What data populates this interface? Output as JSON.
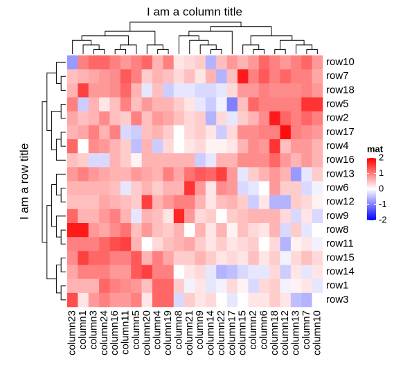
{
  "chart_data": {
    "type": "heatmap",
    "title": "I am a column title",
    "ylabel": "I am a row title",
    "legend_title": "mat",
    "x": [
      "column23",
      "column1",
      "column3",
      "column24",
      "column16",
      "column11",
      "column5",
      "column20",
      "column4",
      "column19",
      "column8",
      "column21",
      "column9",
      "column14",
      "column22",
      "column17",
      "column15",
      "column2",
      "column6",
      "column18",
      "column12",
      "column13",
      "column7",
      "column10"
    ],
    "y": [
      "row10",
      "row7",
      "row18",
      "row5",
      "row2",
      "row17",
      "row4",
      "row16",
      "row13",
      "row6",
      "row12",
      "row9",
      "row8",
      "row11",
      "row15",
      "row14",
      "row1",
      "row3"
    ],
    "values": [
      [
        -0.8,
        1.0,
        1.2,
        1.2,
        1.0,
        0.8,
        1.0,
        1.2,
        0.6,
        1.0,
        0.2,
        0.3,
        0.4,
        -0.6,
        0.5,
        0.8,
        0.6,
        0.8,
        1.2,
        1.0,
        0.8,
        1.0,
        1.2,
        0.8
      ],
      [
        0.5,
        0.6,
        0.7,
        0.8,
        0.9,
        1.3,
        1.0,
        0.4,
        0.6,
        0.5,
        0.3,
        0.5,
        0.2,
        0.6,
        -0.6,
        0.5,
        1.8,
        1.0,
        1.3,
        1.0,
        1.2,
        1.0,
        1.0,
        0.7
      ],
      [
        0.6,
        1.5,
        0.8,
        0.8,
        0.9,
        1.2,
        0.6,
        -0.2,
        0.5,
        -0.4,
        -0.2,
        -0.2,
        -0.3,
        -0.3,
        -0.2,
        0.3,
        0.8,
        0.8,
        1.0,
        0.9,
        0.9,
        0.9,
        1.0,
        0.8
      ],
      [
        1.0,
        -0.4,
        0.6,
        0.2,
        0.5,
        1.0,
        0.5,
        0.8,
        0.6,
        0.6,
        0.4,
        0.2,
        -0.2,
        -0.4,
        -0.1,
        -1.0,
        0.5,
        1.2,
        1.0,
        1.0,
        1.0,
        1.0,
        1.6,
        1.6
      ],
      [
        0.7,
        0.5,
        0.6,
        0.9,
        0.5,
        0.4,
        1.0,
        0.5,
        0.8,
        0.7,
        0.5,
        0.3,
        0.4,
        -0.6,
        0.3,
        -0.2,
        0.4,
        0.6,
        0.9,
        1.8,
        1.2,
        1.0,
        1.2,
        1.0
      ],
      [
        0.6,
        0.7,
        1.0,
        0.6,
        1.0,
        -0.3,
        -0.4,
        0.5,
        0.6,
        0.4,
        0.0,
        0.3,
        0.4,
        0.2,
        -0.4,
        0.3,
        0.9,
        0.9,
        1.0,
        1.0,
        1.9,
        1.0,
        0.9,
        0.8
      ],
      [
        1.2,
        0.0,
        0.9,
        0.8,
        0.6,
        0.4,
        -0.5,
        0.6,
        -0.4,
        0.3,
        0.0,
        0.2,
        0.3,
        0.1,
        0.1,
        0.2,
        0.6,
        0.9,
        0.8,
        1.6,
        0.5,
        0.8,
        0.8,
        0.6
      ],
      [
        0.5,
        0.4,
        -0.3,
        -0.3,
        0.6,
        0.4,
        0.1,
        0.6,
        0.6,
        0.6,
        0.6,
        0.6,
        -0.4,
        -0.2,
        0.6,
        0.6,
        0.9,
        0.9,
        0.9,
        1.2,
        0.8,
        0.6,
        0.8,
        0.6
      ],
      [
        0.8,
        1.0,
        0.8,
        0.7,
        0.6,
        0.6,
        0.8,
        0.7,
        0.6,
        1.0,
        0.7,
        1.1,
        1.3,
        1.2,
        1.5,
        0.8,
        -0.2,
        0.4,
        0.6,
        0.8,
        0.6,
        -0.8,
        -0.2,
        0.4
      ],
      [
        0.6,
        0.6,
        0.6,
        0.6,
        0.5,
        -0.2,
        0.4,
        0.6,
        0.4,
        0.6,
        0.6,
        1.6,
        0.8,
        0.2,
        0.9,
        0.8,
        -0.3,
        -0.2,
        0.0,
        0.8,
        0.4,
        0.4,
        -0.3,
        -0.1
      ],
      [
        0.5,
        0.5,
        0.5,
        0.7,
        0.6,
        0.5,
        0.4,
        1.5,
        0.6,
        0.8,
        1.0,
        1.0,
        0.6,
        0.2,
        0.5,
        0.6,
        0.4,
        -0.4,
        0.2,
        -0.6,
        -0.6,
        0.4,
        0.3,
        0.1
      ],
      [
        1.2,
        0.6,
        0.6,
        0.8,
        1.0,
        0.6,
        -0.2,
        0.6,
        0.5,
        0.2,
        1.7,
        0.8,
        0.3,
        0.4,
        0.0,
        0.4,
        0.5,
        0.6,
        0.6,
        0.6,
        0.3,
        -0.3,
        0.2,
        -0.3
      ],
      [
        1.8,
        1.8,
        0.8,
        0.7,
        0.9,
        1.1,
        0.5,
        0.8,
        0.5,
        0.4,
        0.6,
        0.0,
        0.6,
        0.2,
        0.6,
        0.1,
        0.5,
        0.3,
        0.2,
        0.6,
        -0.3,
        0.4,
        -0.2,
        0.0
      ],
      [
        1.0,
        1.0,
        1.0,
        1.2,
        1.4,
        1.5,
        0.6,
        0.0,
        0.3,
        0.5,
        0.6,
        0.7,
        0.4,
        0.2,
        0.4,
        0.2,
        0.3,
        0.4,
        0.0,
        0.3,
        -0.6,
        0.1,
        0.2,
        -0.1
      ],
      [
        0.9,
        1.5,
        1.2,
        1.2,
        1.0,
        1.0,
        1.3,
        0.6,
        1.0,
        0.7,
        0.4,
        0.4,
        0.6,
        0.4,
        0.2,
        0.3,
        0.2,
        0.5,
        0.2,
        0.4,
        -0.1,
        0.3,
        0.5,
        0.3
      ],
      [
        0.7,
        1.0,
        1.0,
        1.0,
        0.8,
        0.8,
        1.3,
        1.5,
        1.0,
        1.0,
        0.0,
        0.2,
        0.3,
        -0.2,
        -0.6,
        -0.5,
        -0.3,
        -0.2,
        -0.2,
        0.3,
        -0.4,
        0.2,
        -0.2,
        0.2
      ],
      [
        0.6,
        0.6,
        0.6,
        1.2,
        1.0,
        0.9,
        0.8,
        0.5,
        1.2,
        1.2,
        0.4,
        -0.1,
        0.2,
        -0.2,
        -0.1,
        0.3,
        0.1,
        -0.3,
        0.3,
        0.4,
        -0.1,
        0.1,
        0.2,
        -0.2
      ],
      [
        1.4,
        0.2,
        0.8,
        1.0,
        0.8,
        0.8,
        1.0,
        0.2,
        1.2,
        1.2,
        -0.3,
        0.4,
        0.2,
        0.3,
        0.0,
        -0.2,
        0.0,
        0.2,
        0.2,
        0.4,
        0.2,
        -0.5,
        -0.6,
        0.0
      ]
    ],
    "zlim": [
      -2,
      2
    ],
    "zticks": [
      -2,
      -1,
      0,
      1,
      2
    ],
    "colors": [
      "#0000FF",
      "#FFFFFF",
      "#FF0000"
    ]
  }
}
